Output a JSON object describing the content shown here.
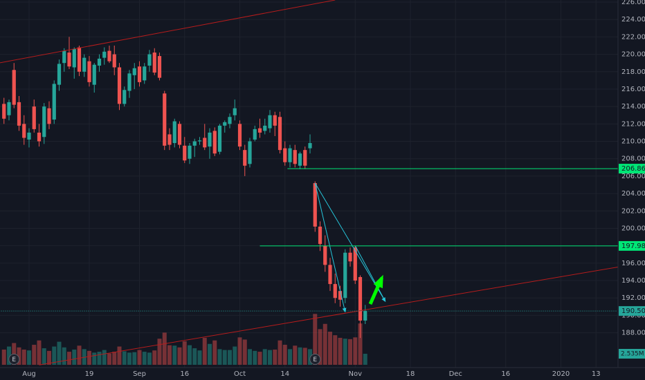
{
  "chart_data": {
    "type": "candlestick",
    "categories": [
      null,
      null,
      null,
      null,
      null,
      "Aug",
      null,
      null,
      null,
      null,
      null,
      null,
      null,
      null,
      null,
      null,
      null,
      "19",
      null,
      null,
      null,
      null,
      null,
      null,
      null,
      null,
      null,
      "Sep",
      null,
      null,
      null,
      null,
      null,
      null,
      null,
      null,
      "16",
      null,
      null,
      null,
      null,
      null,
      null,
      null,
      null,
      null,
      null,
      "Oct",
      null,
      null,
      null,
      null,
      null,
      null,
      null,
      null,
      "14",
      null,
      null,
      null,
      null,
      null,
      null,
      null,
      null,
      null,
      null,
      null,
      null,
      null,
      "Nov",
      null,
      null,
      null,
      null,
      null,
      null,
      null,
      null,
      null,
      null,
      "18",
      null,
      null,
      null,
      null,
      null,
      null,
      null,
      null,
      "Dec",
      null,
      null,
      null,
      null,
      null,
      null,
      null,
      null,
      null,
      "16",
      null,
      null,
      null,
      null,
      null,
      null,
      null,
      null,
      null,
      null,
      "2020",
      null,
      null,
      null,
      null,
      null,
      null,
      "13"
    ],
    "open": [
      214.3,
      213.0,
      218.2,
      214.5,
      212.0,
      210.2,
      214.0,
      211.0,
      210.5,
      213.8,
      212.5,
      216.5,
      219.0,
      220.2,
      218.5,
      220.8,
      218.0,
      219.2,
      216.5,
      218.7,
      219.6,
      220.4,
      220.0,
      218.5,
      214.3,
      215.8,
      217.6,
      218.6,
      217.0,
      218.7,
      220.2,
      219.8,
      215.5,
      210.8,
      209.8,
      212.0,
      209.5,
      208.0,
      209.5,
      210.0,
      210.4,
      209.4,
      211.2,
      208.8,
      211.8,
      212.0,
      213.0,
      212.0,
      209.0,
      207.4,
      210.2,
      211.5,
      211.2,
      211.5,
      213.0,
      212.8,
      209.2,
      207.6,
      209.0,
      207.2,
      209.0,
      209.2,
      205.2,
      200.2,
      198.0,
      195.8,
      193.6,
      192.8,
      192.0,
      197.2,
      197.8,
      194.4,
      189.4,
      null,
      null,
      null,
      null,
      null,
      null,
      null,
      null,
      null,
      null,
      null,
      null,
      null,
      null,
      null,
      null,
      null,
      null,
      null,
      null,
      null,
      null,
      null,
      null,
      null,
      null,
      null,
      null,
      null,
      null,
      null,
      null,
      null,
      null,
      null,
      null,
      null,
      null,
      null,
      null,
      null,
      null,
      null,
      null,
      null,
      null
    ],
    "high": [
      215.0,
      214.8,
      219.0,
      215.2,
      213.0,
      211.5,
      214.8,
      212.0,
      214.4,
      214.6,
      217.0,
      219.4,
      220.7,
      222.0,
      220.8,
      221.0,
      220.0,
      219.8,
      219.0,
      220.0,
      220.8,
      221.0,
      221.0,
      219.0,
      216.3,
      218.2,
      219.0,
      219.2,
      219.0,
      220.5,
      220.7,
      220.2,
      215.8,
      211.5,
      212.6,
      212.3,
      210.5,
      209.8,
      210.3,
      210.5,
      212.0,
      211.5,
      211.6,
      212.0,
      212.4,
      213.2,
      214.8,
      212.4,
      209.6,
      210.4,
      211.8,
      212.6,
      212.6,
      213.6,
      213.4,
      213.4,
      210.0,
      209.6,
      209.6,
      208.8,
      209.4,
      210.8,
      205.4,
      200.8,
      199.2,
      196.6,
      194.8,
      193.4,
      197.6,
      197.8,
      198.0,
      194.6,
      191.2,
      null,
      null,
      null,
      null,
      null,
      null,
      null,
      null,
      null,
      null,
      null,
      null,
      null,
      null,
      null,
      null,
      null,
      null,
      null,
      null,
      null,
      null,
      null,
      null,
      null,
      null,
      null,
      null,
      null,
      null,
      null,
      null,
      null,
      null,
      null,
      null,
      null,
      null,
      null,
      null,
      null,
      null,
      null,
      null,
      null,
      null
    ],
    "low": [
      212.0,
      212.4,
      213.8,
      211.2,
      209.6,
      209.3,
      211.0,
      209.4,
      209.7,
      211.4,
      212.0,
      215.8,
      218.0,
      218.3,
      217.2,
      217.5,
      217.4,
      216.3,
      215.6,
      218.0,
      218.8,
      219.0,
      217.6,
      213.6,
      214.0,
      215.0,
      216.0,
      216.3,
      216.6,
      218.0,
      217.6,
      217.0,
      209.0,
      209.0,
      209.3,
      209.2,
      207.5,
      207.4,
      208.2,
      209.6,
      209.0,
      208.0,
      208.3,
      208.5,
      211.0,
      211.5,
      212.4,
      209.0,
      206.0,
      207.0,
      210.0,
      210.4,
      210.8,
      211.0,
      210.6,
      208.6,
      207.2,
      207.0,
      207.0,
      206.8,
      206.8,
      208.6,
      199.6,
      197.4,
      195.0,
      192.8,
      191.4,
      191.0,
      191.4,
      195.6,
      193.6,
      187.4,
      189.0,
      null,
      null,
      null,
      null,
      null,
      null,
      null,
      null,
      null,
      null,
      null,
      null,
      null,
      null,
      null,
      null,
      null,
      null,
      null,
      null,
      null,
      null,
      null,
      null,
      null,
      null,
      null,
      null,
      null,
      null,
      null,
      null,
      null,
      null,
      null,
      null,
      null,
      null,
      null,
      null,
      null,
      null,
      null,
      null,
      null,
      null
    ],
    "close": [
      212.6,
      214.5,
      214.2,
      211.8,
      210.4,
      211.0,
      211.4,
      210.0,
      214.0,
      212.0,
      216.6,
      218.9,
      220.4,
      218.6,
      220.6,
      218.0,
      219.6,
      216.8,
      218.8,
      219.5,
      220.3,
      219.2,
      218.5,
      214.3,
      215.9,
      217.8,
      218.4,
      216.8,
      218.6,
      220.0,
      217.9,
      217.3,
      209.5,
      209.6,
      212.3,
      209.6,
      207.8,
      209.5,
      210.0,
      210.1,
      209.3,
      211.0,
      208.6,
      211.8,
      212.2,
      212.8,
      213.8,
      209.4,
      207.2,
      210.0,
      211.4,
      211.0,
      211.8,
      213.0,
      211.8,
      209.0,
      207.6,
      209.2,
      207.4,
      208.6,
      207.2,
      209.8,
      200.2,
      198.2,
      195.8,
      193.6,
      192.0,
      191.8,
      197.2,
      196.2,
      194.0,
      189.4,
      190.5,
      null,
      null,
      null,
      null,
      null,
      null,
      null,
      null,
      null,
      null,
      null,
      null,
      null,
      null,
      null,
      null,
      null,
      null,
      null,
      null,
      null,
      null,
      null,
      null,
      null,
      null,
      null,
      null,
      null,
      null,
      null,
      null,
      null,
      null,
      null,
      null,
      null,
      null,
      null,
      null,
      null,
      null,
      null,
      null,
      null,
      null
    ],
    "volume": {
      "values": [
        3.5,
        4.2,
        5.0,
        4.0,
        3.5,
        3.3,
        4.6,
        5.6,
        3.8,
        3.2,
        4.2,
        5.3,
        4.0,
        3.0,
        3.5,
        4.4,
        3.6,
        3.2,
        2.8,
        3.0,
        3.4,
        2.6,
        3.0,
        4.2,
        3.1,
        2.8,
        2.9,
        3.4,
        3.0,
        2.8,
        3.3,
        6.0,
        7.4,
        4.5,
        4.4,
        4.0,
        5.4,
        4.5,
        3.8,
        3.3,
        6.2,
        4.8,
        5.6,
        3.6,
        3.4,
        3.4,
        4.2,
        6.3,
        5.8,
        3.6,
        3.2,
        3.0,
        3.6,
        3.4,
        3.5,
        5.6,
        4.6,
        3.6,
        4.4,
        4.0,
        3.9,
        3.6,
        11.7,
        8.2,
        9.4,
        7.6,
        6.8,
        6.2,
        6.0,
        5.9,
        6.3,
        9.5,
        2.535,
        null,
        null,
        null,
        null,
        null,
        null,
        null,
        null,
        null,
        null,
        null,
        null,
        null,
        null,
        null,
        null,
        null,
        null,
        null,
        null,
        null,
        null,
        null,
        null,
        null,
        null,
        null,
        null,
        null,
        null,
        null,
        null,
        null,
        null,
        null,
        null,
        null,
        null,
        null,
        null,
        null,
        null,
        null,
        null,
        null,
        null
      ],
      "last_label": "2.535M"
    },
    "up_color": "#26a69a",
    "down_color": "#ef5350",
    "ylim": [
      184.0,
      226.24
    ],
    "yticks": [
      {
        "value": 188,
        "label": "188.00"
      },
      {
        "value": 190,
        "label": "190.00"
      },
      {
        "value": 192,
        "label": "192.00"
      },
      {
        "value": 194,
        "label": "194.00"
      },
      {
        "value": 196,
        "label": "196.00"
      },
      {
        "value": 198,
        "label": "198.00"
      },
      {
        "value": 200,
        "label": "200.00"
      },
      {
        "value": 202,
        "label": "202.00"
      },
      {
        "value": 204,
        "label": "204.00"
      },
      {
        "value": 206,
        "label": "206.00"
      },
      {
        "value": 208,
        "label": "208.00"
      },
      {
        "value": 210,
        "label": "210.00"
      },
      {
        "value": 212,
        "label": "212.00"
      },
      {
        "value": 214,
        "label": "214.00"
      },
      {
        "value": 216,
        "label": "216.00"
      },
      {
        "value": 218,
        "label": "218.00"
      },
      {
        "value": 220,
        "label": "220.00"
      },
      {
        "value": 222,
        "label": "222.00"
      },
      {
        "value": 224,
        "label": "224.00"
      },
      {
        "value": 226,
        "label": "226.00"
      }
    ],
    "grid": true,
    "events": [
      {
        "label": "E",
        "at": 2
      },
      {
        "label": "E",
        "at": 62
      }
    ],
    "price_lines": [
      {
        "value": 206.86,
        "label": "206.86",
        "color": "#00e676",
        "start": 56.5
      },
      {
        "value": 197.98,
        "label": "197.98",
        "color": "#00e676",
        "start": 51
      },
      {
        "value": 190.5,
        "label": "190.50",
        "color": "#26a69a",
        "start": -1,
        "dotted": true
      }
    ],
    "drawings": [
      {
        "color": "#b71c1c",
        "points": [
          [
            -1,
            219.0
          ],
          [
            66,
            226.24
          ]
        ]
      },
      {
        "color": "#b71c1c",
        "points": [
          [
            7,
            184.3
          ],
          [
            128,
            196.1
          ]
        ]
      },
      {
        "color": "#26c6da",
        "points": [
          [
            62,
            205.2
          ],
          [
            68,
            190.4
          ]
        ],
        "arrow": true
      },
      {
        "color": "#26c6da",
        "points": [
          [
            62,
            205.2
          ],
          [
            76,
            191.6
          ]
        ],
        "arrow": true
      },
      {
        "color": "#26c6da",
        "points": [
          [
            70,
            198.0
          ],
          [
            76,
            191.6
          ]
        ]
      },
      {
        "color": "#00ff00",
        "width": 5,
        "points": [
          [
            73,
            191.3
          ],
          [
            75.3,
            194.3
          ]
        ],
        "arrow": true
      }
    ]
  }
}
